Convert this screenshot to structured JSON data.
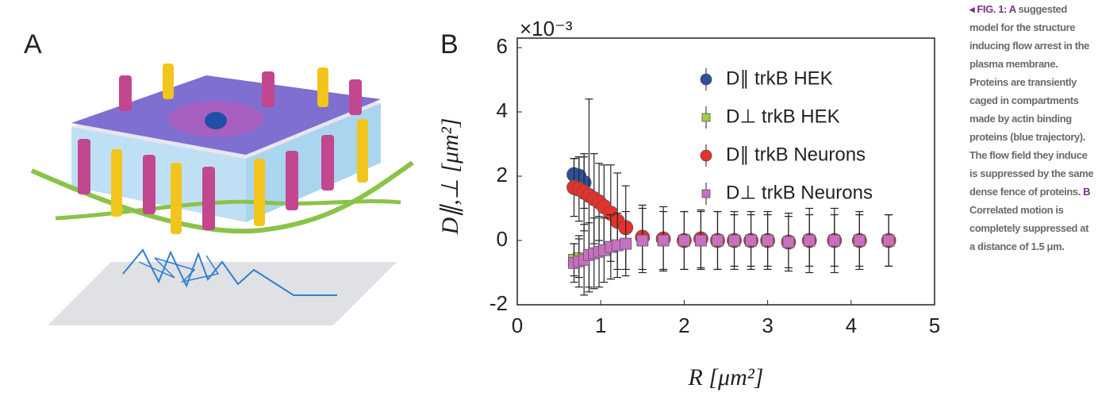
{
  "panel_a": {
    "label": "A"
  },
  "panel_b": {
    "label": "B"
  },
  "caption": {
    "figure_label": "◂ FIG. 1:",
    "panel_a": "A",
    "text_a": "suggested model for the structure inducing flow arrest in the plasma membrane. Proteins are transiently caged in compartments made by actin binding proteins (blue trajectory). The flow field they induce is suppressed by the same dense fence of proteins.",
    "panel_b": "B",
    "text_b": "Correlated motion is completely suppressed at a distance of 1.5 μm."
  },
  "chart_data": {
    "type": "scatter",
    "x_label": "R [μm²]",
    "y_label": "D∥,⊥ [μm²]",
    "y_multiplier": "×10⁻³",
    "xlim": [
      0,
      5
    ],
    "xticks": [
      0,
      1,
      2,
      3,
      4,
      5
    ],
    "ylim": [
      -2,
      6
    ],
    "yticks": [
      -2,
      0,
      2,
      4,
      6
    ],
    "legend": "top-right",
    "series": [
      {
        "name": "D∥ trkB HEK",
        "color": "#2e4fa0",
        "marker": "circle",
        "x": [
          0.68,
          0.74,
          0.8
        ],
        "values": [
          2.05,
          2.0,
          1.8
        ],
        "errors": [
          0.5,
          0.6,
          0.8
        ]
      },
      {
        "name": "D⊥ trkB HEK",
        "color": "#9ccf4a",
        "marker": "square",
        "x": [
          0.68,
          0.74
        ],
        "values": [
          -0.6,
          -0.55
        ],
        "errors": [
          0.5,
          0.6
        ]
      },
      {
        "name": "D∥ trkB Neurons",
        "color": "#e8302a",
        "marker": "circle",
        "x": [
          0.68,
          0.74,
          0.8,
          0.86,
          0.92,
          0.98,
          1.04,
          1.12,
          1.2,
          1.3,
          1.5,
          1.75,
          2.0,
          2.2,
          2.4,
          2.6,
          2.8,
          3.0,
          3.25,
          3.5,
          3.8,
          4.1,
          4.45
        ],
        "values": [
          1.65,
          1.6,
          1.5,
          1.4,
          1.3,
          1.2,
          1.05,
          0.85,
          0.6,
          0.4,
          0.1,
          0.05,
          0,
          0.05,
          0,
          0,
          0,
          0,
          -0.05,
          0,
          0,
          0,
          0
        ],
        "errors": [
          0.9,
          1.0,
          1.2,
          3.0,
          1.4,
          1.2,
          1.3,
          1.5,
          1.5,
          1.3,
          1.0,
          1.0,
          0.9,
          0.9,
          0.9,
          0.9,
          0.9,
          0.9,
          0.9,
          1.0,
          1.0,
          0.9,
          0.8
        ]
      },
      {
        "name": "D⊥ trkB Neurons",
        "color": "#c86fc1",
        "marker": "square",
        "x": [
          0.68,
          0.74,
          0.8,
          0.86,
          0.92,
          0.98,
          1.04,
          1.12,
          1.2,
          1.3,
          1.5,
          1.75,
          2.0,
          2.2,
          2.4,
          2.6,
          2.8,
          3.0,
          3.25,
          3.5,
          3.8,
          4.1,
          4.45
        ],
        "values": [
          -0.7,
          -0.65,
          -0.6,
          -0.45,
          -0.4,
          -0.35,
          -0.3,
          -0.2,
          -0.15,
          -0.1,
          0,
          0,
          0,
          0,
          0,
          0,
          0,
          0,
          -0.05,
          0,
          0,
          0,
          0
        ],
        "errors": [
          0.6,
          0.8,
          1.1,
          1.0,
          1.1,
          1.1,
          1.0,
          1.0,
          1.0,
          1.0,
          1.0,
          0.9,
          0.9,
          0.9,
          0.9,
          0.8,
          0.8,
          0.8,
          0.8,
          0.8,
          0.8,
          0.8,
          0.8
        ]
      }
    ]
  }
}
